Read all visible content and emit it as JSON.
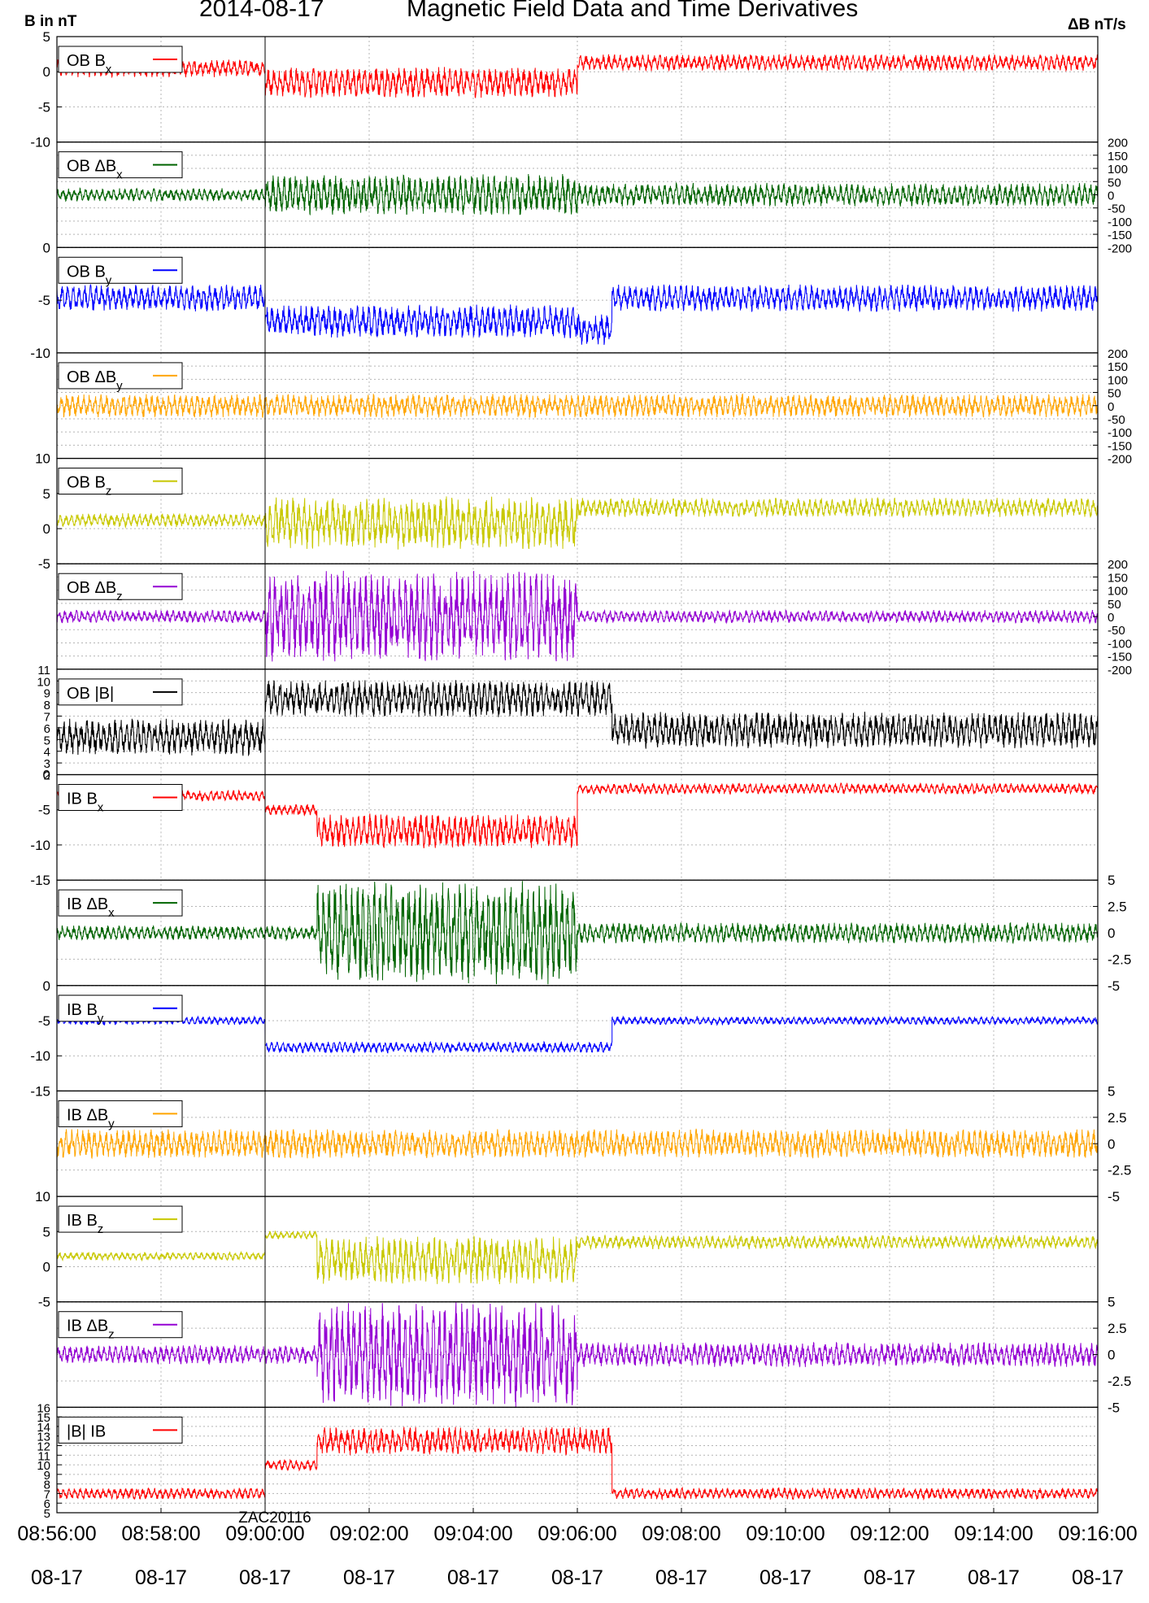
{
  "header": {
    "date": "2014-08-17",
    "title": "Magnetic Field Data and Time Derivatives",
    "left_unit": "B in nT",
    "right_unit": "ΔB nT/s"
  },
  "marker": {
    "time": "09:00:00",
    "label": "ZAC20116"
  },
  "time_axis": {
    "start": "08:56:00",
    "end": "09:16:00",
    "ticks": [
      "08:56:00",
      "08:58:00",
      "09:00:00",
      "09:02:00",
      "09:04:00",
      "09:06:00",
      "09:08:00",
      "09:10:00",
      "09:12:00",
      "09:14:00",
      "09:16:00"
    ],
    "date_label": "08-17"
  },
  "chart_data": {
    "type": "line",
    "x_unit": "time (UT)",
    "panels": [
      {
        "legend": "OB Bx",
        "legend_main": "OB B",
        "legend_sub": "x",
        "color": "#ff0000",
        "axis": "left",
        "ylim": [
          -10,
          5
        ],
        "yticks": [
          "5",
          "0",
          "-5",
          "-10"
        ],
        "segments": [
          {
            "from": "08:56:00",
            "to": "09:00:00",
            "level": 0.5,
            "noise": 1.3
          },
          {
            "from": "09:00:00",
            "to": "09:06:00",
            "level": -1.5,
            "noise": 2.2
          },
          {
            "from": "09:06:00",
            "to": "09:16:00",
            "level": 1.3,
            "noise": 1.2
          }
        ]
      },
      {
        "legend": "OB ΔBx",
        "legend_main": "OB ΔB",
        "legend_sub": "x",
        "color": "#006400",
        "axis": "right",
        "ylim": [
          -200,
          200
        ],
        "yticks": [
          "200",
          "150",
          "100",
          "50",
          "0",
          "-50",
          "-100",
          "-150",
          "-200"
        ],
        "segments": [
          {
            "from": "08:56:00",
            "to": "09:00:00",
            "level": 0,
            "noise": 25
          },
          {
            "from": "09:00:00",
            "to": "09:06:00",
            "level": 0,
            "noise": 80
          },
          {
            "from": "09:06:00",
            "to": "09:16:00",
            "level": 0,
            "noise": 45
          }
        ]
      },
      {
        "legend": "OB By",
        "legend_main": "OB B",
        "legend_sub": "y",
        "color": "#0000ff",
        "axis": "left",
        "ylim": [
          -10,
          0
        ],
        "yticks": [
          "0",
          "-5",
          "-10"
        ],
        "segments": [
          {
            "from": "08:56:00",
            "to": "09:00:00",
            "level": -4.8,
            "noise": 1.3
          },
          {
            "from": "09:00:00",
            "to": "09:06:00",
            "level": -7.0,
            "noise": 1.6
          },
          {
            "from": "09:06:00",
            "to": "09:06:40",
            "level": -7.8,
            "noise": 1.5
          },
          {
            "from": "09:06:40",
            "to": "09:16:00",
            "level": -4.8,
            "noise": 1.3
          }
        ]
      },
      {
        "legend": "OB ΔBy",
        "legend_main": "OB ΔB",
        "legend_sub": "y",
        "color": "#ffa500",
        "axis": "right",
        "ylim": [
          -200,
          200
        ],
        "yticks": [
          "200",
          "150",
          "100",
          "50",
          "0",
          "-50",
          "-100",
          "-150",
          "-200"
        ],
        "segments": [
          {
            "from": "08:56:00",
            "to": "09:16:00",
            "level": 0,
            "noise": 45
          }
        ]
      },
      {
        "legend": "OB Bz",
        "legend_main": "OB B",
        "legend_sub": "z",
        "color": "#c8c800",
        "axis": "left",
        "ylim": [
          -5,
          10
        ],
        "yticks": [
          "10",
          "5",
          "0",
          "-5"
        ],
        "segments": [
          {
            "from": "08:56:00",
            "to": "09:00:00",
            "level": 1.2,
            "noise": 1.0
          },
          {
            "from": "09:00:00",
            "to": "09:06:00",
            "level": 0.8,
            "noise": 3.8
          },
          {
            "from": "09:06:00",
            "to": "09:16:00",
            "level": 3.0,
            "noise": 1.4
          }
        ]
      },
      {
        "legend": "OB ΔBz",
        "legend_main": "OB ΔB",
        "legend_sub": "z",
        "color": "#9400d3",
        "axis": "right",
        "ylim": [
          -200,
          200
        ],
        "yticks": [
          "200",
          "150",
          "100",
          "50",
          "0",
          "-50",
          "-100",
          "-150",
          "-200"
        ],
        "segments": [
          {
            "from": "08:56:00",
            "to": "09:00:00",
            "level": 0,
            "noise": 25
          },
          {
            "from": "09:00:00",
            "to": "09:06:00",
            "level": 0,
            "noise": 175
          },
          {
            "from": "09:06:00",
            "to": "09:16:00",
            "level": 0,
            "noise": 25
          }
        ]
      },
      {
        "legend": "OB |B|",
        "legend_main": "OB |B|",
        "legend_sub": "",
        "color": "#000000",
        "axis": "left",
        "ylim": [
          2,
          11
        ],
        "yticks": [
          "11",
          "10",
          "9",
          "8",
          "7",
          "6",
          "5",
          "4",
          "3",
          "2"
        ],
        "segments": [
          {
            "from": "08:56:00",
            "to": "09:00:00",
            "level": 5.2,
            "noise": 1.6
          },
          {
            "from": "09:00:00",
            "to": "09:06:40",
            "level": 8.5,
            "noise": 1.6
          },
          {
            "from": "09:06:40",
            "to": "09:16:00",
            "level": 5.8,
            "noise": 1.6
          }
        ]
      },
      {
        "legend": "IB Bx",
        "legend_main": "IB B",
        "legend_sub": "x",
        "color": "#ff0000",
        "axis": "left",
        "ylim": [
          -15,
          0
        ],
        "yticks": [
          "0",
          "-5",
          "-10",
          "-15"
        ],
        "segments": [
          {
            "from": "08:56:00",
            "to": "09:00:00",
            "level": -3.0,
            "noise": 0.8
          },
          {
            "from": "09:00:00",
            "to": "09:01:00",
            "level": -5.0,
            "noise": 0.8
          },
          {
            "from": "09:01:00",
            "to": "09:06:00",
            "level": -8.0,
            "noise": 2.5
          },
          {
            "from": "09:06:00",
            "to": "09:16:00",
            "level": -2.0,
            "noise": 0.8
          }
        ]
      },
      {
        "legend": "IB ΔBx",
        "legend_main": "IB ΔB",
        "legend_sub": "x",
        "color": "#006400",
        "axis": "right",
        "ylim": [
          -5,
          5
        ],
        "yticks": [
          "5",
          "2.5",
          "0",
          "-2.5",
          "-5"
        ],
        "segments": [
          {
            "from": "08:56:00",
            "to": "09:01:00",
            "level": 0,
            "noise": 0.7
          },
          {
            "from": "09:01:00",
            "to": "09:06:00",
            "level": 0,
            "noise": 5.0
          },
          {
            "from": "09:06:00",
            "to": "09:16:00",
            "level": 0,
            "noise": 1.0
          }
        ]
      },
      {
        "legend": "IB By",
        "legend_main": "IB B",
        "legend_sub": "y",
        "color": "#0000ff",
        "axis": "left",
        "ylim": [
          -15,
          0
        ],
        "yticks": [
          "0",
          "-5",
          "-10",
          "-15"
        ],
        "segments": [
          {
            "from": "08:56:00",
            "to": "09:00:00",
            "level": -5.0,
            "noise": 0.6
          },
          {
            "from": "09:00:00",
            "to": "09:06:40",
            "level": -8.8,
            "noise": 0.8
          },
          {
            "from": "09:06:40",
            "to": "09:16:00",
            "level": -5.0,
            "noise": 0.6
          }
        ]
      },
      {
        "legend": "IB ΔBy",
        "legend_main": "IB ΔB",
        "legend_sub": "y",
        "color": "#ffa500",
        "axis": "right",
        "ylim": [
          -5,
          5
        ],
        "yticks": [
          "5",
          "2.5",
          "0",
          "-2.5",
          "-5"
        ],
        "segments": [
          {
            "from": "08:56:00",
            "to": "09:16:00",
            "level": 0,
            "noise": 1.4
          }
        ]
      },
      {
        "legend": "IB Bz",
        "legend_main": "IB B",
        "legend_sub": "z",
        "color": "#c8c800",
        "axis": "left",
        "ylim": [
          -5,
          10
        ],
        "yticks": [
          "10",
          "5",
          "0",
          "-5"
        ],
        "segments": [
          {
            "from": "08:56:00",
            "to": "09:00:00",
            "level": 1.5,
            "noise": 0.6
          },
          {
            "from": "09:00:00",
            "to": "09:01:00",
            "level": 4.5,
            "noise": 0.6
          },
          {
            "from": "09:01:00",
            "to": "09:06:00",
            "level": 1.0,
            "noise": 3.5
          },
          {
            "from": "09:06:00",
            "to": "09:16:00",
            "level": 3.5,
            "noise": 1.0
          }
        ]
      },
      {
        "legend": "IB ΔBz",
        "legend_main": "IB ΔB",
        "legend_sub": "z",
        "color": "#9400d3",
        "axis": "right",
        "ylim": [
          -5,
          5
        ],
        "yticks": [
          "5",
          "2.5",
          "0",
          "-2.5",
          "-5"
        ],
        "segments": [
          {
            "from": "08:56:00",
            "to": "09:01:00",
            "level": 0,
            "noise": 0.9
          },
          {
            "from": "09:01:00",
            "to": "09:06:00",
            "level": 0,
            "noise": 5.0
          },
          {
            "from": "09:06:00",
            "to": "09:16:00",
            "level": 0,
            "noise": 1.2
          }
        ]
      },
      {
        "legend": "|B| IB",
        "legend_main": "|B| IB",
        "legend_sub": "",
        "color": "#ff0000",
        "axis": "left",
        "ylim": [
          5,
          16
        ],
        "yticks": [
          "16",
          "15",
          "14",
          "13",
          "12",
          "11",
          "10",
          "9",
          "8",
          "7",
          "6",
          "5"
        ],
        "segments": [
          {
            "from": "08:56:00",
            "to": "09:00:00",
            "level": 7.0,
            "noise": 0.6
          },
          {
            "from": "09:00:00",
            "to": "09:01:00",
            "level": 10.0,
            "noise": 0.6
          },
          {
            "from": "09:01:00",
            "to": "09:06:40",
            "level": 12.5,
            "noise": 1.5
          },
          {
            "from": "09:06:40",
            "to": "09:16:00",
            "level": 7.0,
            "noise": 0.6
          }
        ]
      }
    ]
  }
}
